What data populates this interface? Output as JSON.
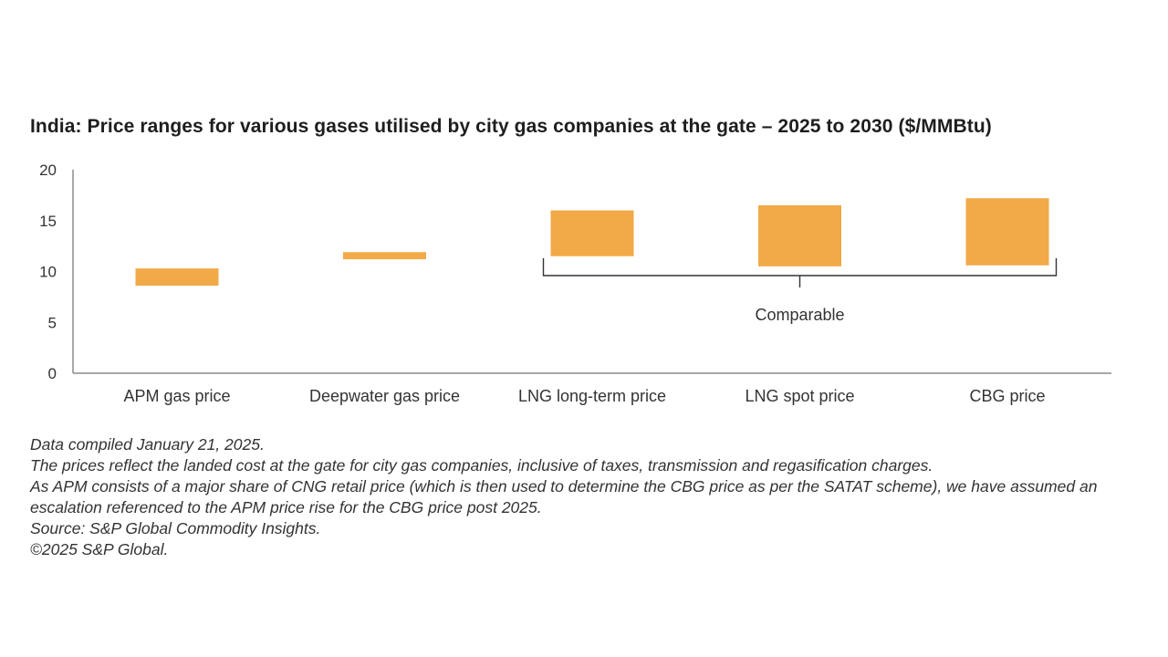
{
  "chart_data": {
    "type": "bar",
    "subtype": "floating-range",
    "title": "India: Price ranges for various gases utilised by city gas companies at the gate – 2025 to 2030 ($/MMBtu)",
    "categories": [
      "APM gas price",
      "Deepwater gas price",
      "LNG long-term price",
      "LNG spot price",
      "CBG price"
    ],
    "series": [
      {
        "low": [
          8.6,
          11.2,
          11.5,
          10.5,
          10.6
        ],
        "high": [
          10.3,
          11.9,
          16.0,
          16.5,
          17.2
        ]
      }
    ],
    "ylim": [
      0,
      20
    ],
    "yticks": [
      "0",
      "5",
      "10",
      "15",
      "20"
    ],
    "xlabel": "",
    "ylabel": "",
    "grid": false,
    "annotation": {
      "text": "Comparable",
      "spans_categories": [
        "LNG long-term price",
        "LNG spot price",
        "CBG price"
      ]
    },
    "colors": {
      "bar": "#F2A947",
      "axis": "#8c8c8c",
      "bracket": "#333333"
    }
  },
  "notes": {
    "compiled": "Data compiled January 21, 2025.",
    "prices": "The prices reflect the landed cost at the gate for city gas companies, inclusive of taxes, transmission and regasification charges.",
    "apm": "As APM consists of a major share of CNG retail price (which is then used to determine the CBG price as per the SATAT scheme), we have assumed an escalation referenced to the APM price rise for the CBG price post 2025.",
    "source": "Source: S&P Global Commodity Insights.",
    "copyright": "©2025 S&P Global."
  }
}
